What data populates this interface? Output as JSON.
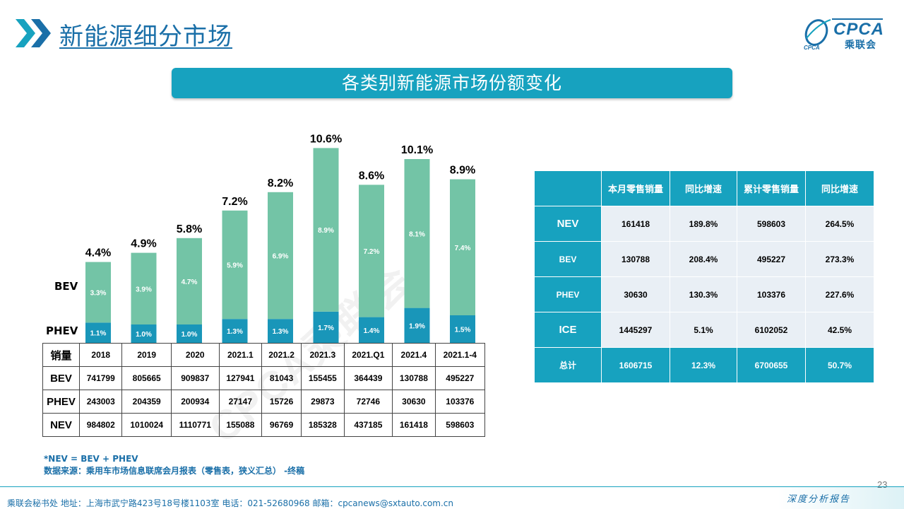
{
  "header": {
    "title": "新能源细分市场",
    "logo_text": "CPCA",
    "logo_cn": "乘联会",
    "logo_small": "CPCA"
  },
  "banner": {
    "text": "各类别新能源市场份额变化"
  },
  "colors": {
    "accent": "#17a2bf",
    "bev": "#73c4a6",
    "phev": "#1996b9",
    "title_blue": "#1a6fa8"
  },
  "chart_data": {
    "type": "bar",
    "stacked": true,
    "categories": [
      "2018",
      "2019",
      "2020",
      "2021.1",
      "2021.2",
      "2021.3",
      "2021.Q1",
      "2021.4",
      "2021.1-4"
    ],
    "series": [
      {
        "name": "PHEV",
        "values": [
          1.1,
          1.0,
          1.0,
          1.3,
          1.3,
          1.7,
          1.4,
          1.9,
          1.5
        ],
        "labels": [
          "1.1%",
          "1.0%",
          "1.0%",
          "1.3%",
          "1.3%",
          "1.7%",
          "1.4%",
          "1.9%",
          "1.5%"
        ]
      },
      {
        "name": "BEV",
        "values": [
          3.3,
          3.9,
          4.7,
          5.9,
          6.9,
          8.9,
          7.2,
          8.1,
          7.4
        ],
        "labels": [
          "3.3%",
          "3.9%",
          "4.7%",
          "5.9%",
          "6.9%",
          "8.9%",
          "7.2%",
          "8.1%",
          "7.4%"
        ]
      }
    ],
    "totals": [
      4.4,
      4.9,
      5.8,
      7.2,
      8.2,
      10.6,
      8.6,
      10.1,
      8.9
    ],
    "total_labels": [
      "4.4%",
      "4.9%",
      "5.8%",
      "7.2%",
      "8.2%",
      "10.6%",
      "8.6%",
      "10.1%",
      "8.9%"
    ],
    "ylim": [
      0,
      11
    ],
    "grid": false,
    "legend": "left"
  },
  "sales_table": {
    "header_label": "销量",
    "rows": [
      {
        "label": "BEV",
        "values": [
          "741799",
          "805665",
          "909837",
          "127941",
          "81043",
          "155455",
          "364439",
          "130788",
          "495227"
        ]
      },
      {
        "label": "PHEV",
        "values": [
          "243003",
          "204359",
          "200934",
          "27147",
          "15726",
          "29873",
          "72746",
          "30630",
          "103376"
        ]
      },
      {
        "label": "NEV",
        "values": [
          "984802",
          "1010024",
          "1110771",
          "155088",
          "96769",
          "185328",
          "437185",
          "161418",
          "598603"
        ]
      }
    ]
  },
  "right_table": {
    "headers": [
      "",
      "本月零售销量",
      "同比增速",
      "累计零售销量",
      "同比增速"
    ],
    "rows": [
      {
        "label": "NEV",
        "values": [
          "161418",
          "189.8%",
          "598603",
          "264.5%"
        ]
      },
      {
        "label": "BEV",
        "values": [
          "130788",
          "208.4%",
          "495227",
          "273.3%"
        ]
      },
      {
        "label": "PHEV",
        "values": [
          "30630",
          "130.3%",
          "103376",
          "227.6%"
        ]
      },
      {
        "label": "ICE",
        "values": [
          "1445297",
          "5.1%",
          "6102052",
          "42.5%"
        ]
      },
      {
        "label": "总计",
        "values": [
          "1606715",
          "12.3%",
          "6700655",
          "50.7%"
        ]
      }
    ]
  },
  "watermark": {
    "text": "CPCA乘联会"
  },
  "notes": {
    "line1": "*NEV = BEV + PHEV",
    "line2": "数据来源：乘用车市场信息联席会月报表（零售表，狭义汇总） -终稿"
  },
  "page_number": "23",
  "footer": {
    "left": "乘联会秘书处    地址：上海市武宁路423号18号楼1103室    电话：021-52680968    邮箱：cpcanews@sxtauto.com.cn",
    "right": "深度分析报告"
  }
}
